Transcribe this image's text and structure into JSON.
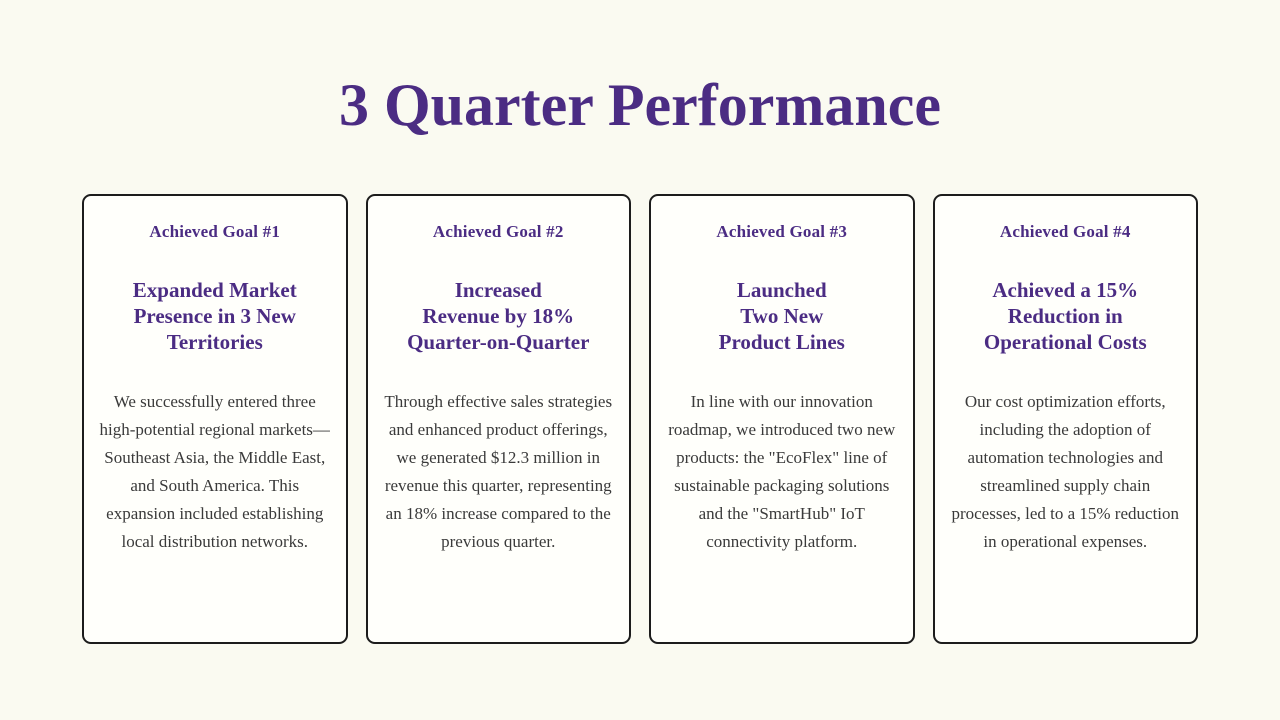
{
  "page": {
    "title": "3 Quarter Performance"
  },
  "colors": {
    "background": "#FAFAF1",
    "card_background": "#FFFFFB",
    "card_border": "#1C1C1C",
    "accent_purple": "#4B2C83",
    "body_text": "#3A3A3A"
  },
  "cards": [
    {
      "header": "Achieved Goal #1",
      "title": "Expanded Market\nPresence in 3 New\nTerritories",
      "body": "We successfully entered three high-potential regional markets—Southeast Asia, the Middle East, and South America. This expansion included establishing local distribution networks."
    },
    {
      "header": "Achieved Goal #2",
      "title": "Increased\nRevenue by 18%\nQuarter-on-Quarter",
      "body": "Through effective sales strategies and enhanced product offerings, we generated $12.3 million in revenue this quarter, representing an 18% increase compared to the previous quarter."
    },
    {
      "header": "Achieved Goal #3",
      "title": "Launched\nTwo New\nProduct Lines",
      "body": "In line with our innovation roadmap, we introduced two new products: the \"EcoFlex\" line of sustainable packaging solutions and the \"SmartHub\" IoT connectivity platform."
    },
    {
      "header": "Achieved Goal #4",
      "title": "Achieved a 15%\nReduction in\nOperational Costs",
      "body": "Our cost optimization efforts, including the adoption of automation technologies and streamlined supply chain processes, led to a 15% reduction in operational expenses."
    }
  ]
}
